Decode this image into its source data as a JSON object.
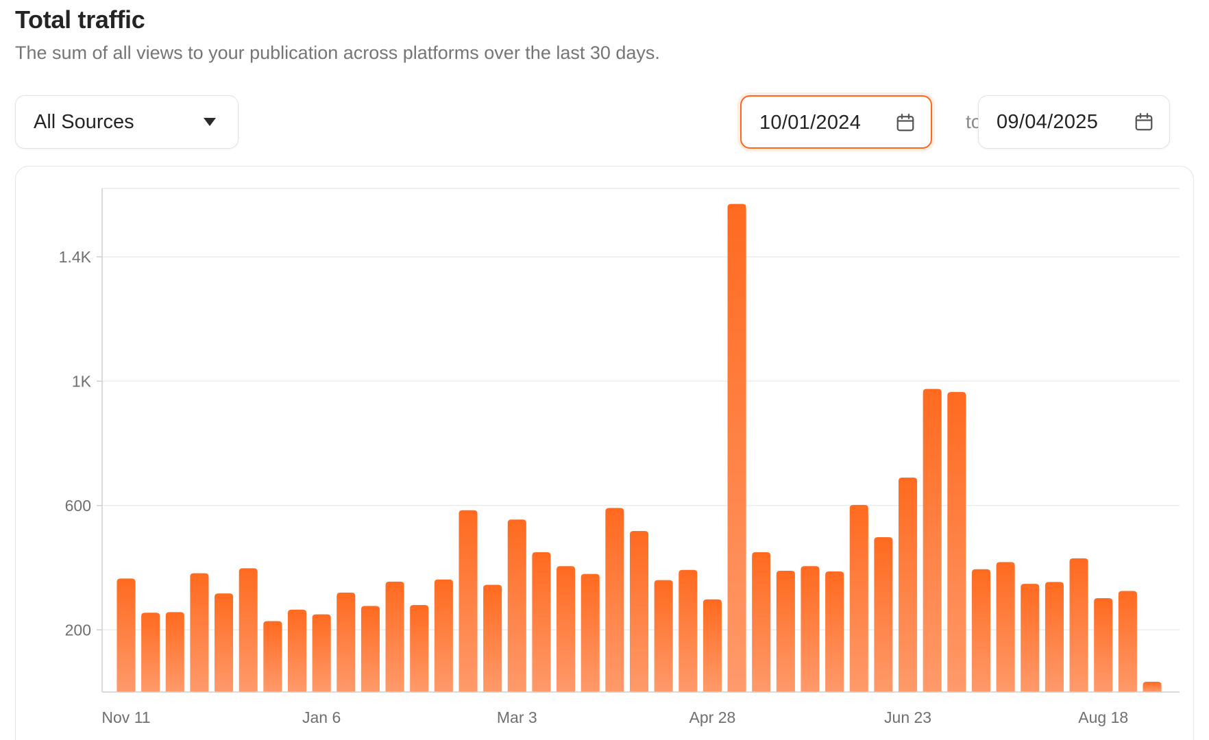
{
  "header": {
    "title": "Total traffic",
    "subtitle": "The sum of all views to your publication across platforms over the last 30 days."
  },
  "filters": {
    "source_select": {
      "value": "All Sources",
      "icon": "caret-down-icon"
    },
    "date_from": {
      "value": "10/01/2024",
      "icon": "calendar-icon",
      "state": "focused"
    },
    "range_separator": "to",
    "date_to": {
      "value": "09/04/2025",
      "icon": "calendar-icon"
    }
  },
  "colors": {
    "accent": "#ff6719",
    "bar_top": "#ff6a1f",
    "bar_bottom": "#ff9a6b",
    "grid": "#ececec",
    "axis": "#cfcfcf"
  },
  "chart_data": {
    "type": "bar",
    "categories": [
      "Nov 11",
      "",
      "",
      "",
      "",
      "",
      "",
      "",
      "Jan 6",
      "",
      "",
      "",
      "",
      "",
      "",
      "",
      "Mar 3",
      "",
      "",
      "",
      "",
      "",
      "",
      "",
      "Apr 28",
      "",
      "",
      "",
      "",
      "",
      "",
      "",
      "Jun 23",
      "",
      "",
      "",
      "",
      "",
      "",
      "",
      "Aug 18",
      "",
      ""
    ],
    "x_tick_labels": [
      "Nov 11",
      "Jan 6",
      "Mar 3",
      "Apr 28",
      "Jun 23",
      "Aug 18"
    ],
    "values": [
      365,
      255,
      257,
      382,
      317,
      398,
      228,
      265,
      250,
      320,
      277,
      355,
      280,
      362,
      585,
      345,
      555,
      450,
      405,
      380,
      592,
      518,
      360,
      393,
      298,
      1570,
      450,
      390,
      405,
      388,
      602,
      498,
      690,
      975,
      965,
      395,
      418,
      348,
      354,
      430,
      302,
      325,
      33
    ],
    "y_ticks": [
      200,
      600,
      1000,
      1400
    ],
    "y_tick_labels": [
      "200",
      "600",
      "1K",
      "1.4K"
    ],
    "ylim": [
      0,
      1620
    ],
    "grid": true,
    "title": "",
    "xlabel": "",
    "ylabel": ""
  }
}
